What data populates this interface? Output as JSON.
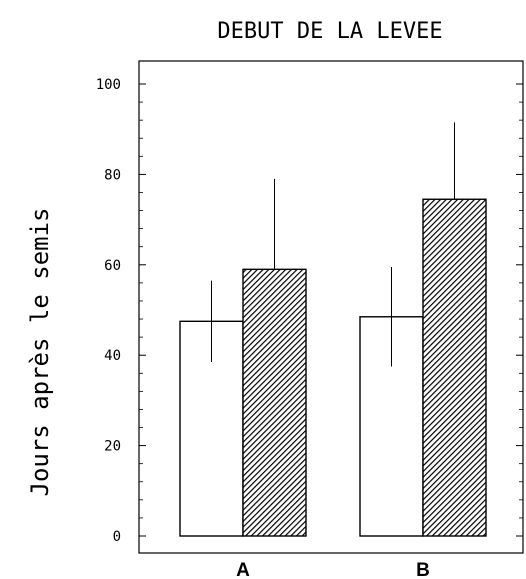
{
  "chart_data": {
    "type": "bar",
    "title": "DEBUT DE LA LEVEE",
    "xlabel": "",
    "ylabel": "Jours après le semis",
    "ylim": [
      0,
      100
    ],
    "yticks": [
      "0",
      "20",
      "40",
      "60",
      "80",
      "100"
    ],
    "categories": [
      "A",
      "B"
    ],
    "series": [
      {
        "values": [
          47.5,
          48.5
        ],
        "errors": [
          9,
          11
        ],
        "fill": "white"
      },
      {
        "values": [
          59,
          74.5
        ],
        "errors": [
          20,
          17
        ],
        "fill": "hatched"
      }
    ],
    "grid": false,
    "legend": "none"
  },
  "colors": {
    "stroke": "#000000",
    "background": "#ffffff"
  }
}
